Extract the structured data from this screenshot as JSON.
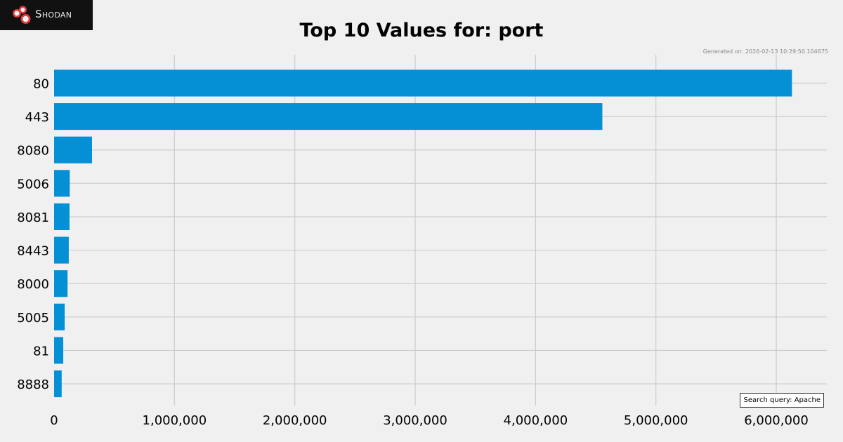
{
  "brand": {
    "name": "Shodan",
    "icon": "shodan-logo-icon"
  },
  "generated_text": "Generated on: 2026-02-13 10:29:50.104675",
  "search_query_text": "Search query: Apache",
  "colors": {
    "background": "#f0f0f0",
    "bar": "#0590d6",
    "grid": "#cbcbcb",
    "logo_bg": "#111111",
    "logo_accent": "#e23b3b"
  },
  "chart_data": {
    "type": "bar",
    "orientation": "horizontal",
    "title": "Top 10 Values for: port",
    "xlabel": "",
    "ylabel": "",
    "categories": [
      "80",
      "443",
      "8080",
      "5006",
      "8081",
      "8443",
      "8000",
      "5005",
      "81",
      "8888"
    ],
    "values": [
      6130000,
      4555000,
      315000,
      130000,
      128000,
      122000,
      112000,
      88000,
      76000,
      63000
    ],
    "xlim": [
      0,
      6420000
    ],
    "xticks": [
      0,
      1000000,
      2000000,
      3000000,
      4000000,
      5000000,
      6000000
    ],
    "xtick_labels": [
      "0",
      "1,000,000",
      "2,000,000",
      "3,000,000",
      "4,000,000",
      "5,000,000",
      "6,000,000"
    ],
    "grid": true,
    "legend": "none"
  }
}
